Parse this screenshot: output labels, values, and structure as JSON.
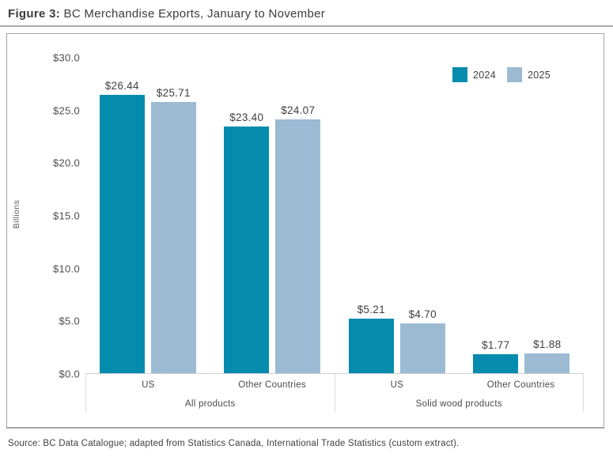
{
  "figure": {
    "title_prefix": "Figure 3:",
    "title_rest": " BC Merchandise Exports, January to November",
    "source": "Source: BC Data Catalogue; adapted from Statistics Canada, International Trade Statistics (custom extract)."
  },
  "chart_data": {
    "type": "bar",
    "title": "BC Merchandise Exports, January to November",
    "ylabel": "Billions",
    "ylim": [
      0,
      30
    ],
    "ytick_labels": [
      "$30.0",
      "$25.0",
      "$20.0",
      "$15.0",
      "$10.0",
      "$5.0",
      "$0.0"
    ],
    "grid": false,
    "legend_position": "top-right",
    "groups": [
      {
        "label": "All products",
        "categories": [
          "US",
          "Other Countries"
        ]
      },
      {
        "label": "Solid wood products",
        "categories": [
          "US",
          "Other Countries"
        ]
      }
    ],
    "series": [
      {
        "name": "2024",
        "color": "#048BAE",
        "values": [
          26.44,
          23.4,
          5.21,
          1.77
        ]
      },
      {
        "name": "2025",
        "color": "#9CBBD3",
        "values": [
          25.71,
          24.07,
          4.7,
          1.88
        ]
      }
    ],
    "data_labels": [
      [
        "$26.44",
        "$23.40",
        "$5.21",
        "$1.77"
      ],
      [
        "$25.71",
        "$24.07",
        "$4.70",
        "$1.88"
      ]
    ]
  }
}
